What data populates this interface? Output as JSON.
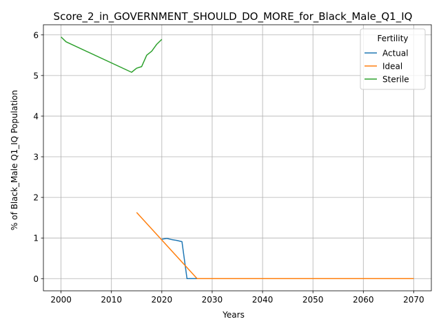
{
  "chart_data": {
    "type": "line",
    "title": "Score_2_in_GOVERNMENT_SHOULD_DO_MORE_for_Black_Male_Q1_IQ",
    "xlabel": "Years",
    "ylabel": "% of Black_Male Q1_IQ Population",
    "xlim": [
      1996.5,
      2073.5
    ],
    "ylim": [
      -0.3,
      6.25
    ],
    "x_ticks": [
      2000,
      2010,
      2020,
      2030,
      2040,
      2050,
      2060,
      2070
    ],
    "y_ticks": [
      0,
      1,
      2,
      3,
      4,
      5,
      6
    ],
    "grid": true,
    "legend": {
      "title": "Fertility",
      "placement": "top-right"
    },
    "series": [
      {
        "name": "Actual",
        "color": "#1f77b4",
        "points": [
          [
            2020,
            0.97
          ],
          [
            2021,
            0.99
          ],
          [
            2022,
            0.96
          ],
          [
            2023,
            0.94
          ],
          [
            2024,
            0.91
          ],
          [
            2025,
            0.0
          ],
          [
            2070,
            0.0
          ]
        ]
      },
      {
        "name": "Ideal",
        "color": "#ff7f0e",
        "points": [
          [
            2015,
            1.63
          ],
          [
            2027,
            0.0
          ],
          [
            2070,
            0.0
          ]
        ]
      },
      {
        "name": "Sterile",
        "color": "#2ca02c",
        "points": [
          [
            2000,
            5.95
          ],
          [
            2001,
            5.83
          ],
          [
            2014,
            5.08
          ],
          [
            2015,
            5.18
          ],
          [
            2016,
            5.22
          ],
          [
            2017,
            5.5
          ],
          [
            2018,
            5.6
          ],
          [
            2019,
            5.77
          ],
          [
            2020,
            5.89
          ]
        ]
      }
    ]
  }
}
